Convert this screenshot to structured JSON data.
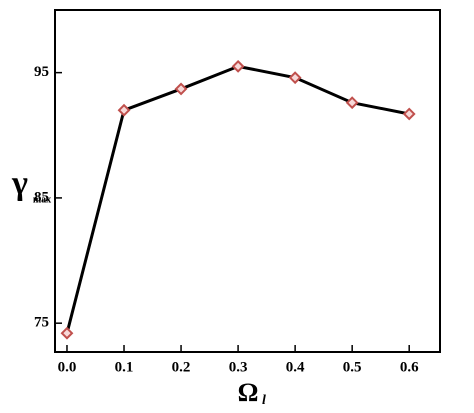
{
  "chart_data": {
    "type": "line",
    "x": [
      0.0,
      0.1,
      0.2,
      0.3,
      0.4,
      0.5,
      0.6
    ],
    "series": [
      {
        "color": "#000000",
        "marker_color": "#c0504d",
        "values": [
          74.2,
          92.0,
          93.7,
          95.5,
          94.6,
          92.6,
          91.7
        ]
      }
    ],
    "xlim": [
      -0.021,
      0.654
    ],
    "xticks": [
      {
        "value": 0,
        "label": "0.0"
      },
      0.1,
      0.2,
      0.3,
      0.4,
      0.5,
      0.6
    ],
    "ylim": [
      72.7,
      100
    ],
    "yticks": [
      75,
      85,
      95
    ],
    "x_label": "Ω",
    "x_label_sub": "l",
    "y_label": "γ",
    "y_label_sub": "max"
  }
}
